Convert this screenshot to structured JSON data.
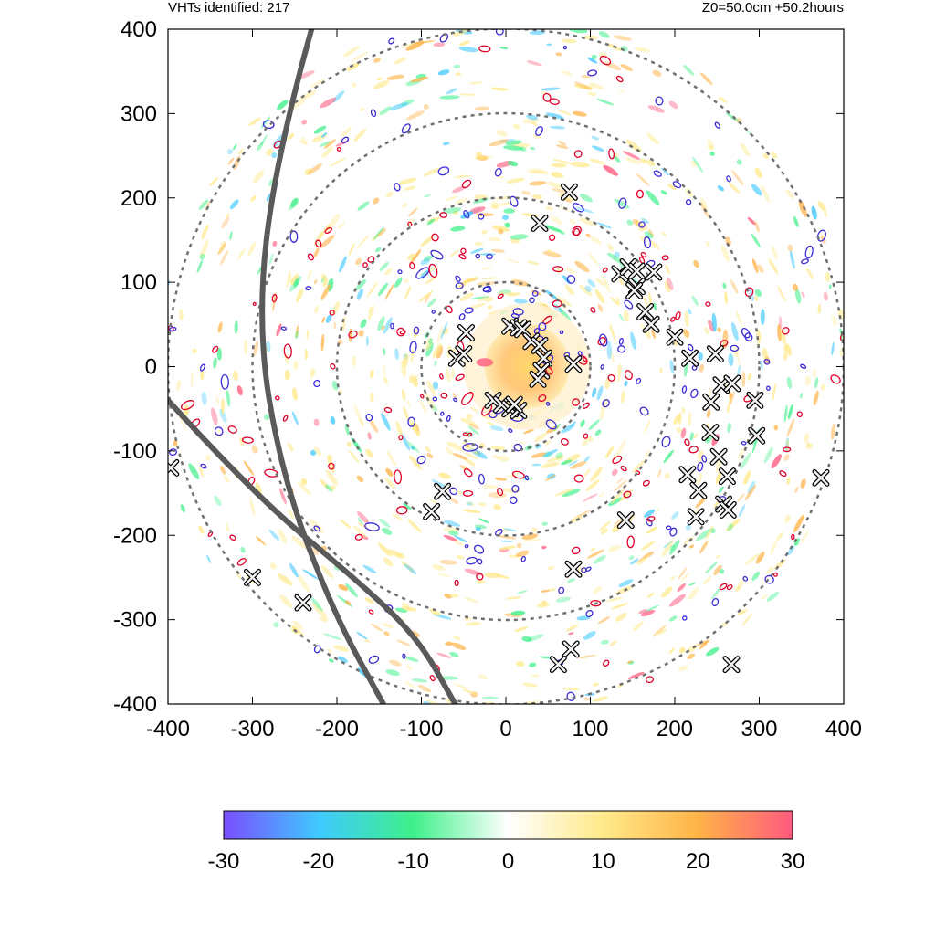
{
  "header": {
    "left_text": "VHTs identified: 217",
    "right_text": "Z0=50.0cm  +50.2hours"
  },
  "chart_data": {
    "type": "heatmap",
    "title": "",
    "xlabel": "",
    "ylabel": "",
    "xlim": [
      -400,
      400
    ],
    "ylim": [
      -400,
      400
    ],
    "x_ticks": [
      "-400",
      "-300",
      "-200",
      "-100",
      "0",
      "100",
      "200",
      "300",
      "400"
    ],
    "y_ticks": [
      "400",
      "300",
      "200",
      "100",
      "0",
      "-100",
      "-200",
      "-300",
      "-400"
    ],
    "grid": false,
    "range_rings": [
      100,
      200,
      300,
      400
    ],
    "colorbar": {
      "range": [
        -30,
        30
      ],
      "ticks": [
        "-30",
        "-20",
        "-10",
        "0",
        "10",
        "20",
        "30"
      ],
      "colors": [
        "#7a4dff",
        "#3fc9ff",
        "#3ff08a",
        "#ffffff",
        "#ffe98a",
        "#ffb347",
        "#ff5a7e"
      ]
    },
    "colors": {
      "positive_high": "#ff5a7e",
      "positive_mid": "#ffb347",
      "positive_low": "#ffe98a",
      "negative_low": "#3ff08a",
      "negative_mid": "#3fc9ff",
      "negative_high": "#7a4dff",
      "contour_outer": "#e0002a",
      "contour_inner": "#3a2bd6",
      "track": "#5a5a5a",
      "ring": "#707070"
    },
    "core": {
      "x": 25,
      "y": 0,
      "radius": 50
    },
    "vht_markers": [
      [
        -58,
        10
      ],
      [
        -47,
        40
      ],
      [
        -50,
        15
      ],
      [
        5,
        48
      ],
      [
        15,
        46
      ],
      [
        20,
        44
      ],
      [
        30,
        30
      ],
      [
        40,
        25
      ],
      [
        45,
        10
      ],
      [
        42,
        -5
      ],
      [
        38,
        -15
      ],
      [
        -15,
        -40
      ],
      [
        -5,
        -45
      ],
      [
        5,
        -50
      ],
      [
        15,
        -52
      ],
      [
        10,
        -45
      ],
      [
        80,
        3
      ],
      [
        40,
        170
      ],
      [
        75,
        207
      ],
      [
        135,
        110
      ],
      [
        145,
        118
      ],
      [
        155,
        113
      ],
      [
        175,
        112
      ],
      [
        155,
        95
      ],
      [
        152,
        90
      ],
      [
        165,
        65
      ],
      [
        172,
        50
      ],
      [
        200,
        35
      ],
      [
        218,
        10
      ],
      [
        248,
        15
      ],
      [
        255,
        -22
      ],
      [
        268,
        -20
      ],
      [
        243,
        -42
      ],
      [
        242,
        -78
      ],
      [
        252,
        -107
      ],
      [
        295,
        -40
      ],
      [
        297,
        -82
      ],
      [
        262,
        -130
      ],
      [
        215,
        -128
      ],
      [
        228,
        -147
      ],
      [
        258,
        -163
      ],
      [
        263,
        -170
      ],
      [
        225,
        -178
      ],
      [
        142,
        -182
      ],
      [
        -75,
        -148
      ],
      [
        -88,
        -172
      ],
      [
        -397,
        -120
      ],
      [
        -300,
        -250
      ],
      [
        -240,
        -280
      ],
      [
        80,
        -240
      ],
      [
        77,
        -335
      ],
      [
        62,
        -353
      ],
      [
        267,
        -353
      ],
      [
        373,
        -132
      ]
    ],
    "tracks": [
      {
        "points": [
          [
            -230,
            400
          ],
          [
            -272,
            250
          ],
          [
            -295,
            50
          ],
          [
            -265,
            -130
          ],
          [
            -205,
            -290
          ],
          [
            -145,
            -400
          ]
        ]
      },
      {
        "points": [
          [
            -400,
            -40
          ],
          [
            -300,
            -150
          ],
          [
            -180,
            -250
          ],
          [
            -105,
            -320
          ],
          [
            -60,
            -400
          ]
        ]
      }
    ]
  }
}
